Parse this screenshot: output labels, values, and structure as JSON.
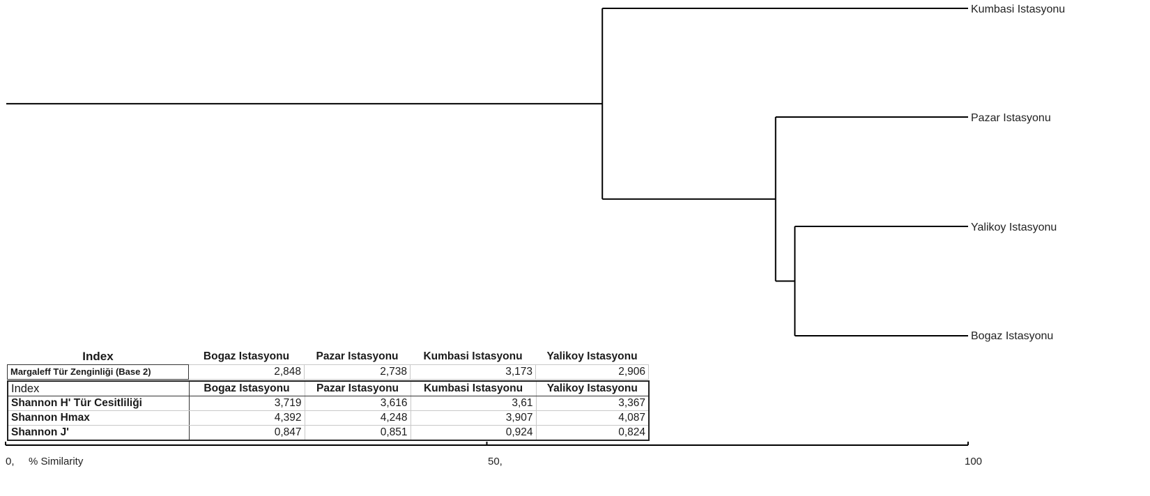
{
  "dendrogram": {
    "leaves": [
      {
        "label": "Kumbasi Istasyonu"
      },
      {
        "label": "Pazar Istasyonu"
      },
      {
        "label": "Yalikoy Istasyonu"
      },
      {
        "label": "Bogaz Istasyonu"
      }
    ],
    "merges": [
      {
        "children": [
          "Yalikoy Istasyonu",
          "Bogaz Istasyonu"
        ],
        "similarity": 82
      },
      {
        "children": [
          "Pazar Istasyonu",
          "Yalikoy+Bogaz"
        ],
        "similarity": 80
      },
      {
        "children": [
          "Kumbasi Istasyonu",
          "Pazar+Yalikoy+Bogaz"
        ],
        "similarity": 62
      }
    ],
    "axis": {
      "min": 0,
      "max": 100,
      "tick_labels": [
        {
          "value": 0,
          "text": "0,"
        },
        {
          "value": 50,
          "text": "50,"
        },
        {
          "value": 100,
          "text": "100"
        }
      ],
      "title": "% Similarity"
    }
  },
  "table1": {
    "header": {
      "index": "Index",
      "cols": [
        "Bogaz Istasyonu",
        "Pazar Istasyonu",
        "Kumbasi Istasyonu",
        "Yalikoy Istasyonu"
      ]
    },
    "rows": [
      {
        "label": "Margaleff Tür Zenginliği (Base 2)",
        "values": [
          "2,848",
          "2,738",
          "3,173",
          "2,906"
        ]
      }
    ]
  },
  "table2": {
    "header": {
      "index": "Index",
      "cols": [
        "Bogaz Istasyonu",
        "Pazar Istasyonu",
        "Kumbasi Istasyonu",
        "Yalikoy Istasyonu"
      ]
    },
    "rows": [
      {
        "label": "Shannon H' Tür Cesitliliği",
        "values": [
          "3,719",
          "3,616",
          "3,61",
          "3,367"
        ]
      },
      {
        "label": "Shannon Hmax",
        "values": [
          "4,392",
          "4,248",
          "3,907",
          "4,087"
        ]
      },
      {
        "label": "Shannon J'",
        "values": [
          "0,847",
          "0,851",
          "0,924",
          "0,824"
        ]
      }
    ]
  },
  "colors": {
    "line": "#000000",
    "text": "#222222"
  }
}
